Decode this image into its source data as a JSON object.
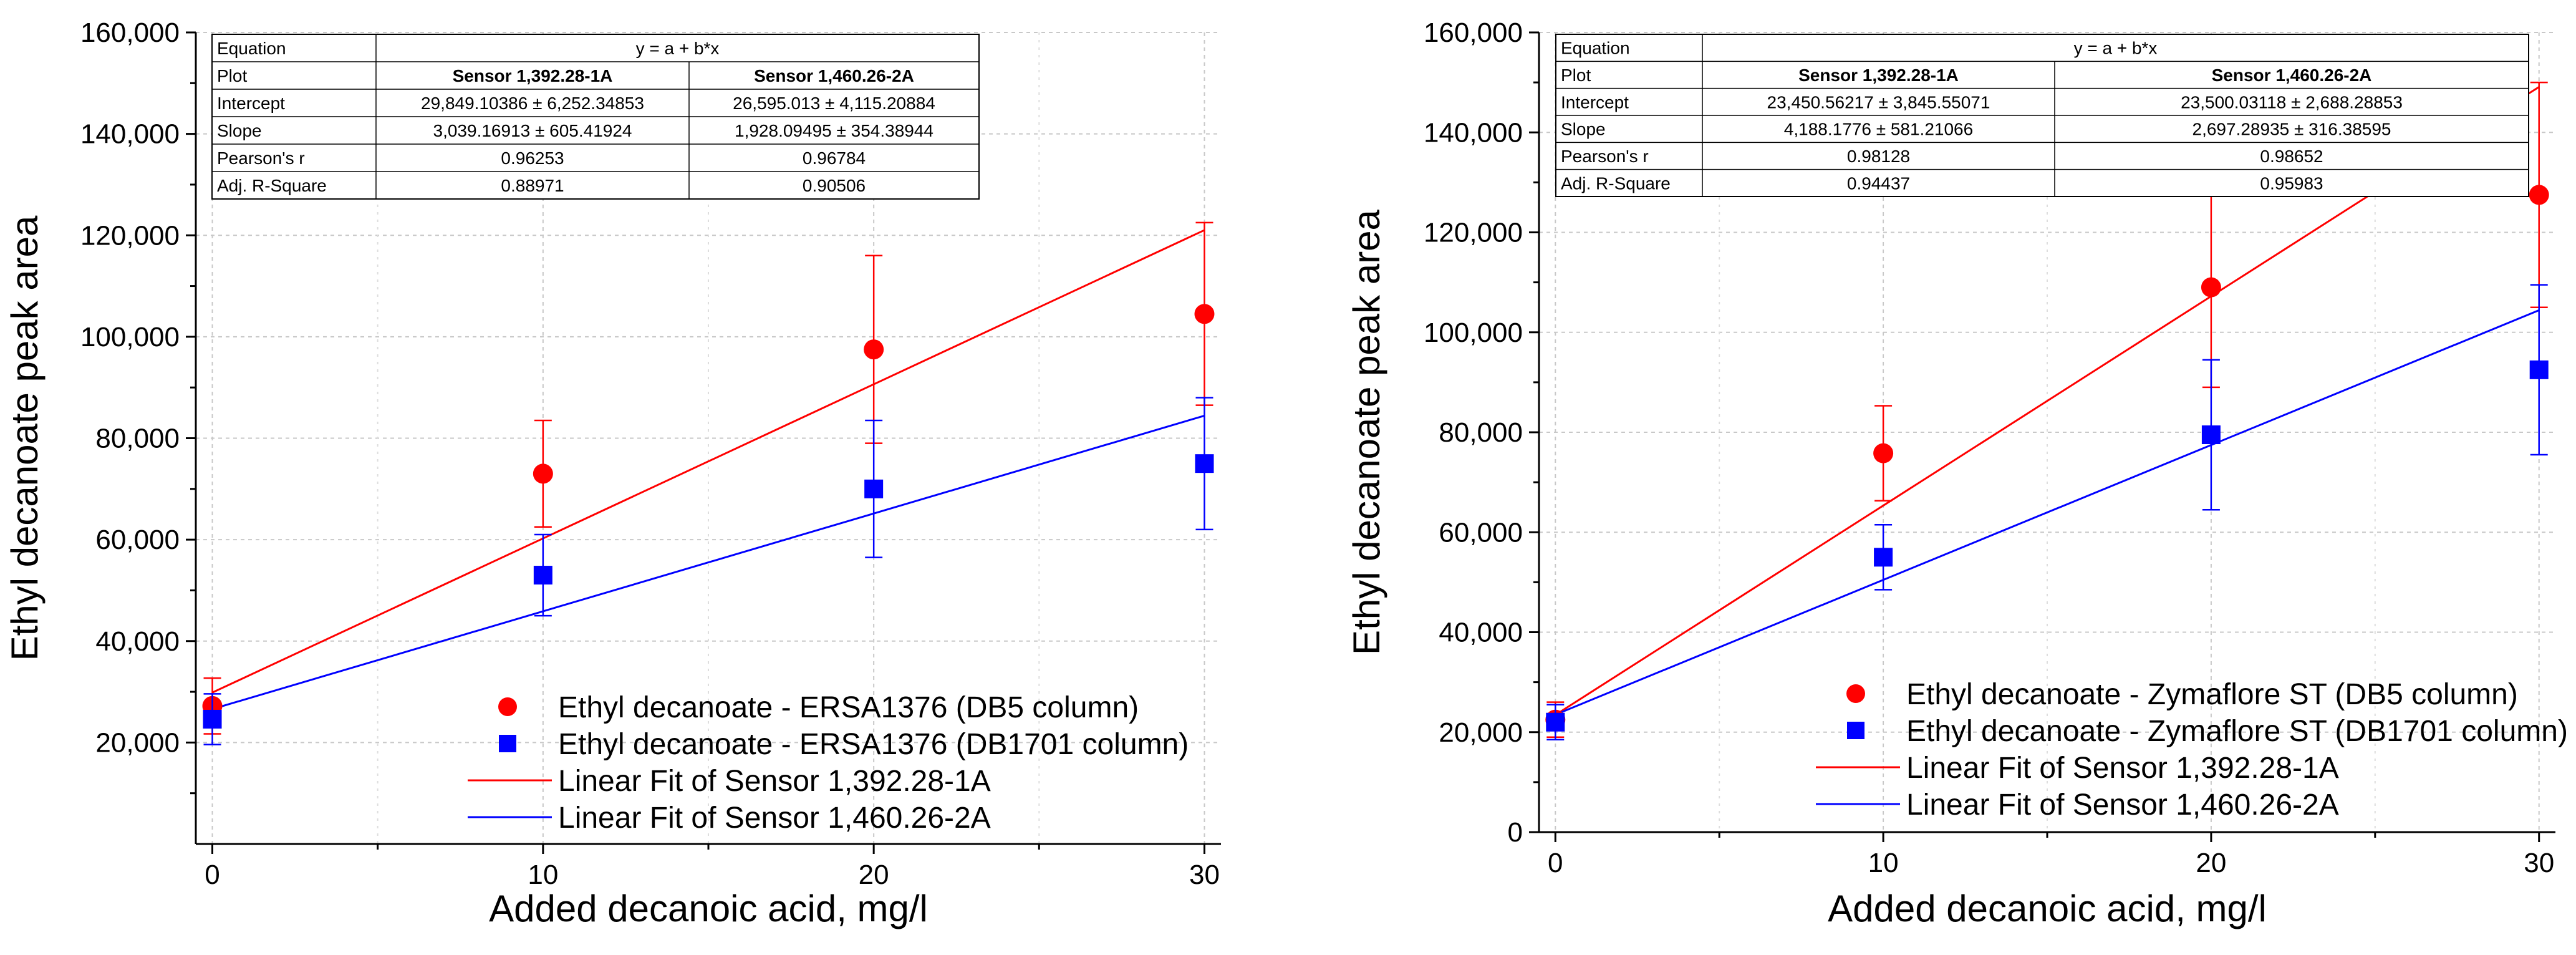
{
  "chart_data": [
    {
      "type": "scatter",
      "xlabel": "Added decanoic acid, mg/l",
      "ylabel": "Ethyl decanoate peak area",
      "xlim": [
        -0.5,
        30.5
      ],
      "ylim": [
        0,
        160000
      ],
      "xticks": [
        0,
        10,
        20,
        30
      ],
      "xtick_labels": [
        "0",
        "10",
        "20",
        "30"
      ],
      "yticks": [
        20000,
        40000,
        60000,
        80000,
        100000,
        120000,
        140000,
        160000
      ],
      "ytick_labels": [
        "20,000",
        "40,000",
        "60,000",
        "80,000",
        "100,000",
        "120,000",
        "140,000",
        "160,000"
      ],
      "grid": true,
      "series": [
        {
          "name": "Ethyl decanoate - ERSA1376 (DB5 column)",
          "marker": "circle",
          "color": "#ff0000",
          "x": [
            0,
            10,
            20,
            30
          ],
          "y": [
            27200,
            73000,
            97500,
            104500
          ],
          "err": [
            5500,
            10500,
            18500,
            18000
          ]
        },
        {
          "name": "Ethyl decanoate - ERSA1376 (DB1701 column)",
          "marker": "square",
          "color": "#0000ff",
          "x": [
            0,
            10,
            20,
            30
          ],
          "y": [
            24600,
            53000,
            70000,
            75000
          ],
          "err": [
            5000,
            8000,
            13500,
            13000
          ]
        }
      ],
      "fits": [
        {
          "name": "Linear Fit of Sensor 1,392.28-1A",
          "color": "#ff0000",
          "intercept": 29849.10386,
          "slope": 3039.16913
        },
        {
          "name": "Linear Fit of Sensor 1,460.26-2A",
          "color": "#0000ff",
          "intercept": 26595.013,
          "slope": 1928.09495
        }
      ],
      "table": {
        "rows": [
          [
            "Equation",
            "y = a + b*x",
            ""
          ],
          [
            "Plot",
            "Sensor 1,392.28-1A",
            "Sensor 1,460.26-2A"
          ],
          [
            "Intercept",
            "29,849.10386 ± 6,252.34853",
            "26,595.013 ± 4,115.20884"
          ],
          [
            "Slope",
            "3,039.16913 ± 605.41924",
            "1,928.09495 ± 354.38944"
          ],
          [
            "Pearson's r",
            "0.96253",
            "0.96784"
          ],
          [
            "Adj. R-Square",
            "0.88971",
            "0.90506"
          ]
        ]
      }
    },
    {
      "type": "scatter",
      "xlabel": "Added decanoic acid, mg/l",
      "ylabel": "Ethyl decanoate peak area",
      "xlim": [
        -0.5,
        30.5
      ],
      "ylim": [
        0,
        160000
      ],
      "xticks": [
        0,
        10,
        20,
        30
      ],
      "xtick_labels": [
        "0",
        "10",
        "20",
        "30"
      ],
      "yticks": [
        0,
        20000,
        40000,
        60000,
        80000,
        100000,
        120000,
        140000,
        160000
      ],
      "ytick_labels": [
        "0",
        "20,000",
        "40,000",
        "60,000",
        "80,000",
        "100,000",
        "120,000",
        "140,000",
        "160,000"
      ],
      "grid": true,
      "series": [
        {
          "name": "Ethyl decanoate - Zymaflore ST (DB5 column)",
          "marker": "circle",
          "color": "#ff0000",
          "x": [
            0,
            10,
            20,
            30
          ],
          "y": [
            22500,
            75800,
            109000,
            127500
          ],
          "err": [
            3500,
            9500,
            20000,
            22500
          ]
        },
        {
          "name": "Ethyl decanoate - Zymaflore ST (DB1701 column)",
          "marker": "square",
          "color": "#0000ff",
          "x": [
            0,
            10,
            20,
            30
          ],
          "y": [
            22000,
            55000,
            79500,
            92500
          ],
          "err": [
            3500,
            6500,
            15000,
            17000
          ]
        }
      ],
      "fits": [
        {
          "name": "Linear Fit of Sensor 1,392.28-1A",
          "color": "#ff0000",
          "intercept": 23450.56217,
          "slope": 4188.1776
        },
        {
          "name": "Linear Fit of Sensor 1,460.26-2A",
          "color": "#0000ff",
          "intercept": 23500.03118,
          "slope": 2697.28935
        }
      ],
      "table": {
        "rows": [
          [
            "Equation",
            "y = a + b*x",
            ""
          ],
          [
            "Plot",
            "Sensor 1,392.28-1A",
            "Sensor 1,460.26-2A"
          ],
          [
            "Intercept",
            "23,450.56217 ± 3,845.55071",
            "23,500.03118 ± 2,688.28853"
          ],
          [
            "Slope",
            "4,188.1776 ± 581.21066",
            "2,697.28935 ± 316.38595"
          ],
          [
            "Pearson's r",
            "0.98128",
            "0.98652"
          ],
          [
            "Adj. R-Square",
            "0.94437",
            "0.95983"
          ]
        ]
      }
    }
  ]
}
